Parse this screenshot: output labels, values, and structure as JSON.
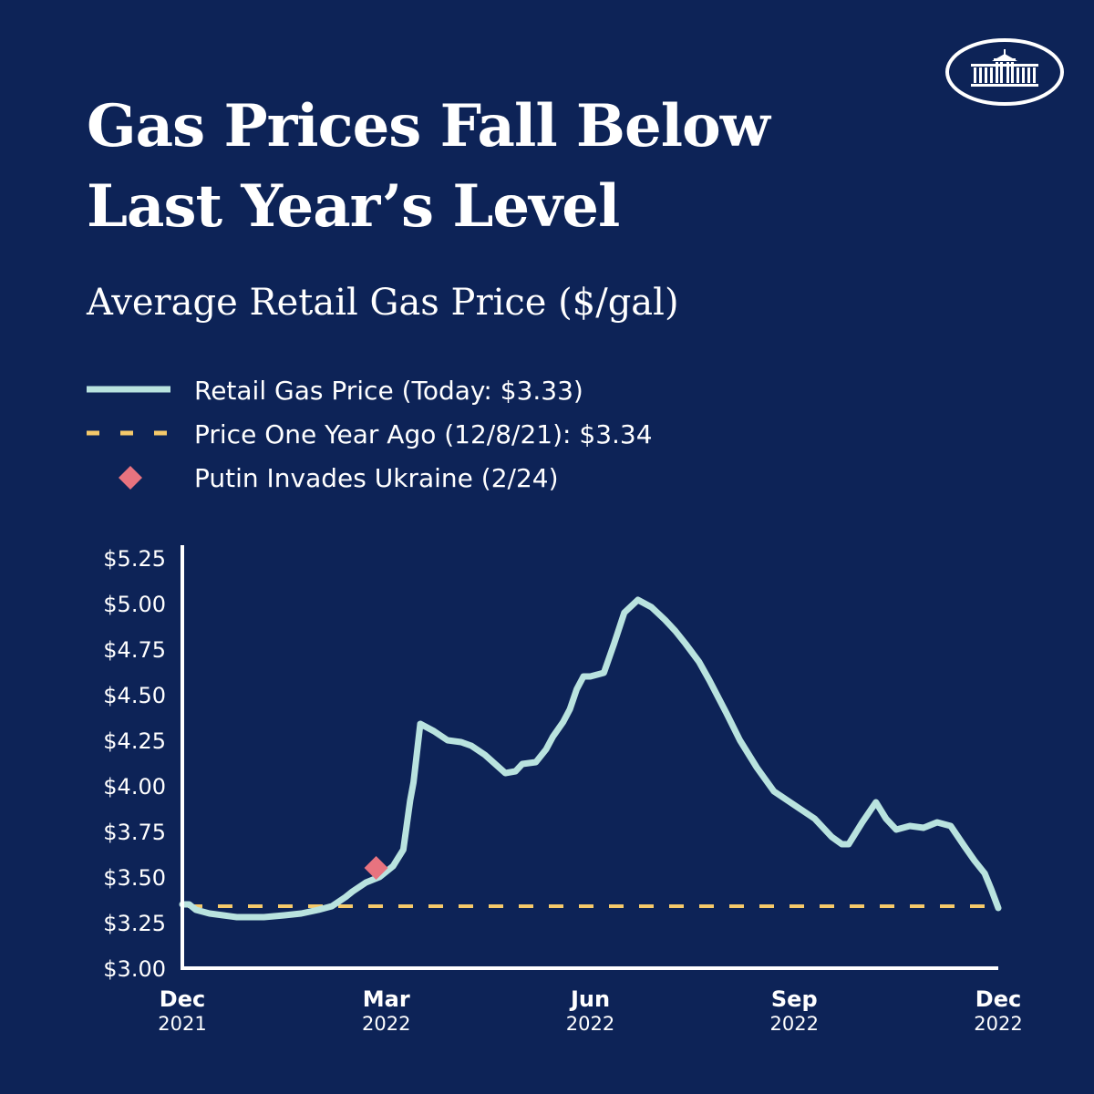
{
  "title": {
    "line1": "Gas Prices Fall Below",
    "line2": "Last Year’s Level"
  },
  "subtitle": "Average Retail Gas Price ($/gal)",
  "logo": {
    "name": "white-house-logo"
  },
  "legend": {
    "items": [
      {
        "label": "Retail Gas Price (Today: $3.33)",
        "style": "solid-line",
        "color": "#b9e3df"
      },
      {
        "label": "Price One Year Ago (12/8/21): $3.34",
        "style": "dashed-line",
        "color": "#f5c96a"
      },
      {
        "label": "Putin Invades Ukraine (2/24)",
        "style": "diamond",
        "color": "#e8737f"
      }
    ]
  },
  "colors": {
    "background": "#0d2357",
    "axis": "#ffffff",
    "line": "#b9e3df",
    "reference": "#f5c96a",
    "marker": "#e8737f"
  },
  "chart_data": {
    "type": "line",
    "title": "Average Retail Gas Price ($/gal)",
    "xlabel": "",
    "ylabel": "",
    "ylim": [
      3.0,
      5.25
    ],
    "yticks": [
      3.0,
      3.25,
      3.5,
      3.75,
      4.0,
      4.25,
      4.5,
      4.75,
      5.0,
      5.25
    ],
    "yticklabels": [
      "$3.00",
      "$3.25",
      "$3.50",
      "$3.75",
      "$4.00",
      "$4.25",
      "$4.50",
      "$4.75",
      "$5.00",
      "$5.25"
    ],
    "xlim": [
      0,
      12
    ],
    "xticks": [
      {
        "x": 0,
        "month": "Dec",
        "year": "2021"
      },
      {
        "x": 3,
        "month": "Mar",
        "year": "2022"
      },
      {
        "x": 6,
        "month": "Jun",
        "year": "2022"
      },
      {
        "x": 9,
        "month": "Sep",
        "year": "2022"
      },
      {
        "x": 12,
        "month": "Dec",
        "year": "2022"
      }
    ],
    "series": [
      {
        "name": "Retail Gas Price (Today: $3.33)",
        "x": [
          0,
          0.1,
          0.2,
          0.4,
          0.6,
          0.8,
          1.0,
          1.2,
          1.5,
          1.75,
          2.0,
          2.2,
          2.4,
          2.5,
          2.7,
          2.9,
          3.0,
          3.1,
          3.15,
          3.25,
          3.35,
          3.4,
          3.5,
          3.7,
          3.9,
          4.1,
          4.25,
          4.45,
          4.6,
          4.75,
          4.9,
          5.0,
          5.2,
          5.35,
          5.45,
          5.6,
          5.7,
          5.8,
          5.9,
          6.0,
          6.1,
          6.2,
          6.35,
          6.5,
          6.7,
          6.9,
          7.1,
          7.25,
          7.4,
          7.6,
          7.75,
          8.0,
          8.2,
          8.45,
          8.7,
          8.9,
          9.1,
          9.3,
          9.55,
          9.7,
          9.8,
          10.0,
          10.2,
          10.35,
          10.5,
          10.7,
          10.9,
          11.1,
          11.3,
          11.5,
          11.65,
          11.8,
          11.9,
          12.0
        ],
        "values": [
          3.35,
          3.35,
          3.32,
          3.3,
          3.29,
          3.28,
          3.28,
          3.28,
          3.29,
          3.3,
          3.32,
          3.34,
          3.39,
          3.42,
          3.47,
          3.5,
          3.53,
          3.56,
          3.59,
          3.65,
          3.92,
          4.02,
          4.34,
          4.3,
          4.25,
          4.24,
          4.22,
          4.17,
          4.12,
          4.07,
          4.08,
          4.12,
          4.13,
          4.2,
          4.27,
          4.35,
          4.42,
          4.53,
          4.6,
          4.6,
          4.61,
          4.62,
          4.78,
          4.95,
          5.02,
          4.98,
          4.91,
          4.85,
          4.78,
          4.68,
          4.58,
          4.4,
          4.25,
          4.1,
          3.97,
          3.92,
          3.87,
          3.82,
          3.72,
          3.68,
          3.68,
          3.8,
          3.91,
          3.82,
          3.76,
          3.78,
          3.77,
          3.8,
          3.78,
          3.67,
          3.59,
          3.52,
          3.43,
          3.33
        ]
      }
    ],
    "reference_line": {
      "name": "Price One Year Ago (12/8/21): $3.34",
      "value": 3.34
    },
    "annotation": {
      "name": "Putin Invades Ukraine (2/24)",
      "x": 2.85,
      "y": 3.55
    }
  }
}
